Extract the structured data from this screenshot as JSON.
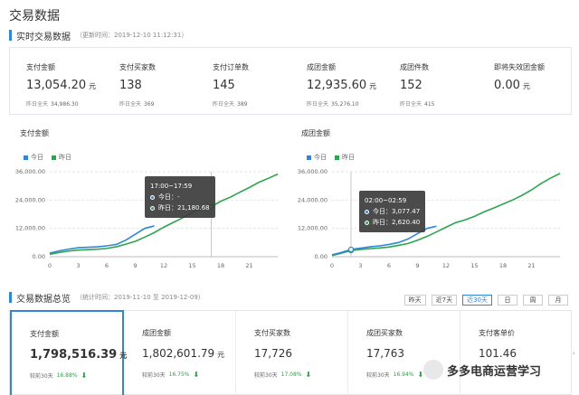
{
  "page": {
    "title": "交易数据"
  },
  "realtime": {
    "title": "实时交易数据",
    "updated": "（更新时间：2019-12-10 11:12:31）",
    "kpis": [
      {
        "label": "支付金额",
        "value": "13,054.20",
        "unit": "元",
        "yday_label": "昨日全天",
        "yday": "34,986.30"
      },
      {
        "label": "支付买家数",
        "value": "138",
        "unit": "",
        "yday_label": "昨日全天",
        "yday": "369"
      },
      {
        "label": "支付订单数",
        "value": "145",
        "unit": "",
        "yday_label": "昨日全天",
        "yday": "389"
      },
      {
        "label": "成团金额",
        "value": "12,935.60",
        "unit": "元",
        "yday_label": "昨日全天",
        "yday": "35,276.10"
      },
      {
        "label": "成团件数",
        "value": "152",
        "unit": "",
        "yday_label": "昨日全天",
        "yday": "415"
      },
      {
        "label": "即将失效团金额",
        "value": "0.00",
        "unit": "元",
        "yday_label": "",
        "yday": ""
      }
    ]
  },
  "colors": {
    "today": "#2f86d6",
    "yesterday": "#2ea44f",
    "accent": "#2f86d6",
    "down": "#2e9f46"
  },
  "chart_data": [
    {
      "type": "line",
      "title": "支付金额",
      "legend": [
        "今日",
        "昨日"
      ],
      "x_ticks": [
        0,
        3,
        6,
        9,
        12,
        15,
        18,
        21
      ],
      "y_ticks": [
        "0.00",
        "12,000.00",
        "24,000.00",
        "36,000.00"
      ],
      "xlim": [
        0,
        24
      ],
      "ylim": [
        0,
        36000
      ],
      "series": [
        {
          "name": "今日",
          "x": [
            0,
            1,
            2,
            3,
            4,
            5,
            6,
            7,
            8,
            9,
            10,
            11
          ],
          "y": [
            1500,
            2500,
            3200,
            3800,
            4000,
            4200,
            4600,
            5200,
            7000,
            9500,
            12000,
            13054
          ]
        },
        {
          "name": "昨日",
          "x": [
            0,
            1,
            2,
            3,
            4,
            5,
            6,
            7,
            8,
            9,
            10,
            11,
            12,
            13,
            14,
            15,
            16,
            17,
            18,
            19,
            20,
            21,
            22,
            23,
            24
          ],
          "y": [
            1000,
            1800,
            2400,
            2800,
            3000,
            3200,
            3500,
            4200,
            5300,
            6500,
            8300,
            10200,
            12500,
            14500,
            16500,
            18800,
            20500,
            21180,
            23500,
            25200,
            27300,
            29300,
            31500,
            33200,
            34986
          ]
        }
      ],
      "tooltip": {
        "time": "17:00~17:59",
        "today_label": "今日：",
        "today": "-",
        "yday_label": "昨日：",
        "yday": "21,180.68"
      }
    },
    {
      "type": "line",
      "title": "成团金额",
      "legend": [
        "今日",
        "昨日"
      ],
      "x_ticks": [
        0,
        3,
        6,
        9,
        12,
        15,
        18,
        21
      ],
      "y_ticks": [
        "0.00",
        "12,000.00",
        "24,000.00",
        "36,000.00"
      ],
      "xlim": [
        0,
        24
      ],
      "ylim": [
        0,
        36000
      ],
      "series": [
        {
          "name": "今日",
          "x": [
            0,
            1,
            2,
            3,
            4,
            5,
            6,
            7,
            8,
            9,
            10,
            11
          ],
          "y": [
            800,
            1800,
            3077,
            3600,
            4200,
            4600,
            5200,
            6000,
            7500,
            9800,
            12000,
            12935
          ]
        },
        {
          "name": "昨日",
          "x": [
            0,
            1,
            2,
            3,
            4,
            5,
            6,
            7,
            8,
            9,
            10,
            11,
            12,
            13,
            14,
            15,
            16,
            17,
            18,
            19,
            20,
            21,
            22,
            23,
            24
          ],
          "y": [
            500,
            1500,
            2620,
            3100,
            3400,
            3700,
            4100,
            4800,
            5600,
            7000,
            8600,
            10500,
            12500,
            14400,
            15600,
            17100,
            19000,
            20600,
            22300,
            24000,
            26000,
            28300,
            31000,
            33300,
            35276
          ]
        }
      ],
      "tooltip": {
        "time": "02:00~02:59",
        "today_label": "今日：",
        "today": "3,077.47",
        "yday_label": "昨日：",
        "yday": "2,620.40"
      }
    }
  ],
  "overview": {
    "title": "交易数据总览",
    "range": "（统计时间：2019-11-10 至 2019-12-09）",
    "tabs": [
      "昨天",
      "近7天",
      "近30天",
      "日",
      "周",
      "月"
    ],
    "active_tab": 2,
    "cards": [
      {
        "label": "支付金额",
        "value": "1,798,516.39",
        "unit": "元",
        "cmp_label": "较前30天",
        "pct": "16.88%"
      },
      {
        "label": "成团金额",
        "value": "1,802,601.79",
        "unit": "元",
        "cmp_label": "较前30天",
        "pct": "16.75%"
      },
      {
        "label": "支付买家数",
        "value": "17,726",
        "unit": "",
        "cmp_label": "较前30天",
        "pct": "17.08%"
      },
      {
        "label": "成团买家数",
        "value": "17,763",
        "unit": "",
        "cmp_label": "较前30天",
        "pct": "16.94%"
      },
      {
        "label": "支付客单价",
        "value": "101.46",
        "unit": "",
        "cmp_label": "较前30天",
        "pct": ""
      }
    ]
  },
  "watermark": {
    "text": "多多电商运营学习"
  }
}
